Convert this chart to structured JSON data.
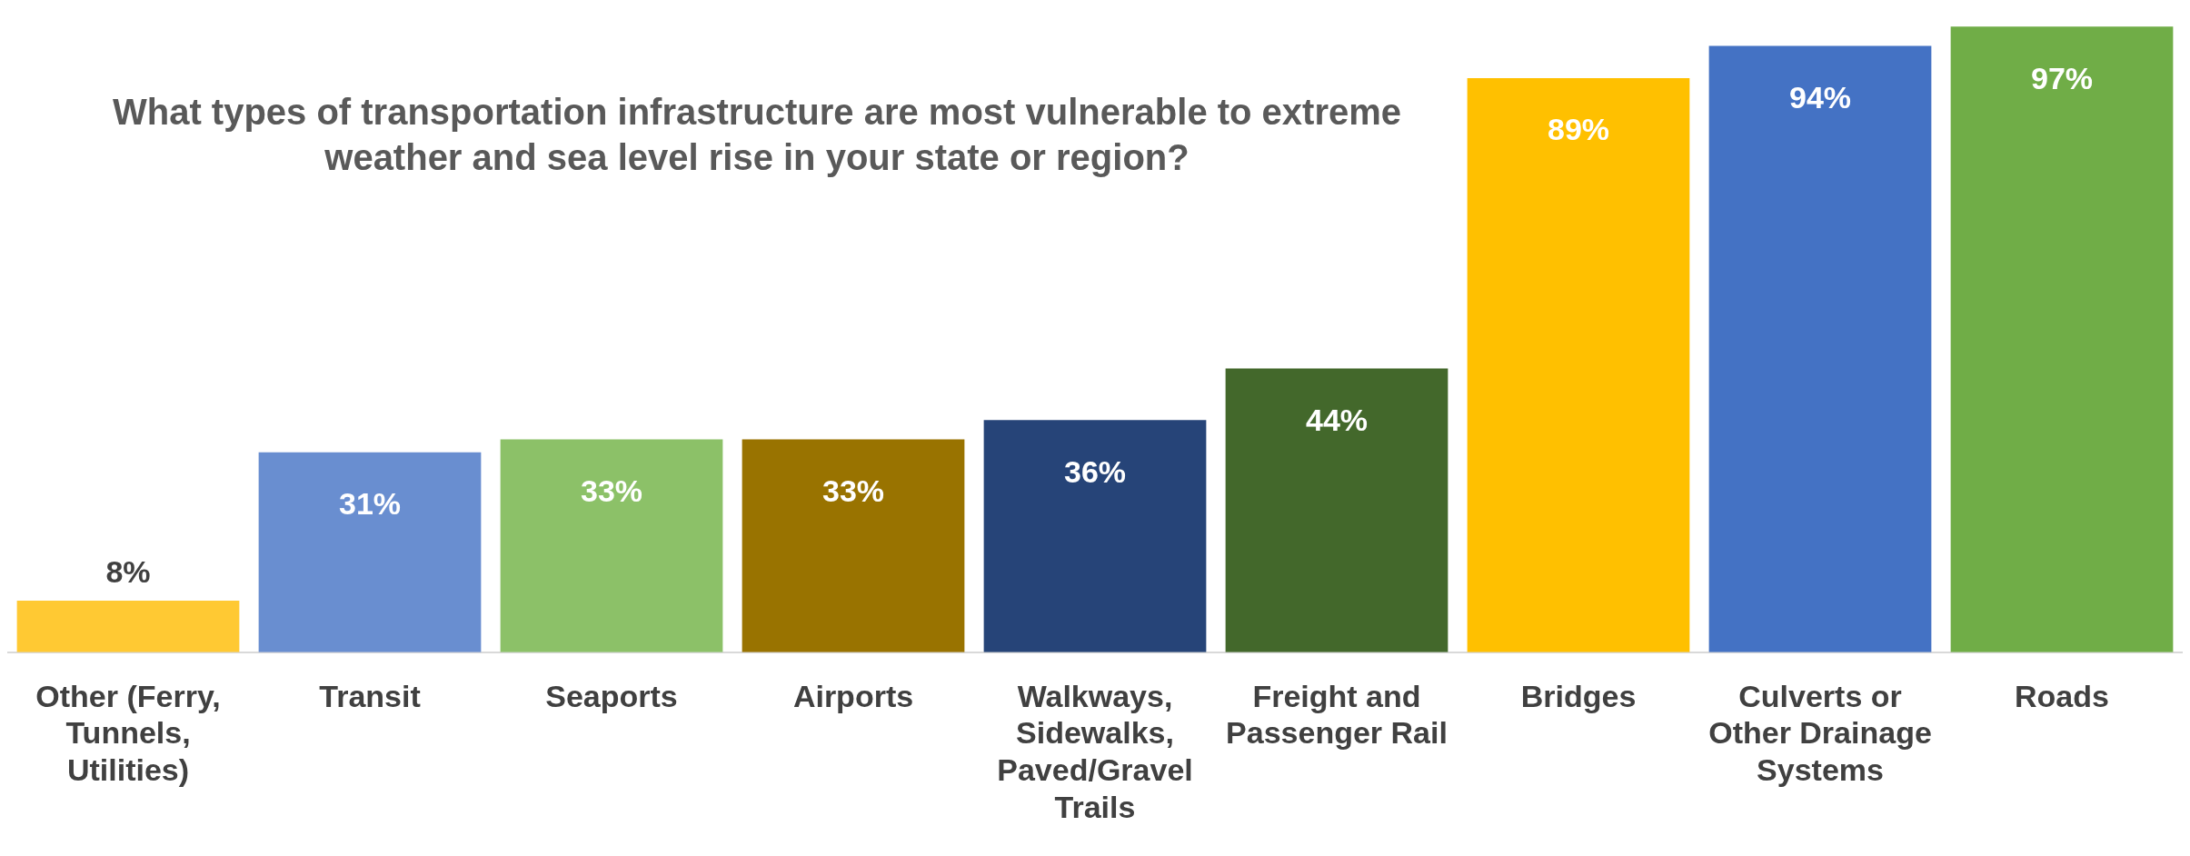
{
  "chart_data": {
    "type": "bar",
    "title": "What types of transportation infrastructure are most vulnerable to extreme weather and sea level rise in your state or region?",
    "categories": [
      "Other (Ferry, Tunnels, Utilities)",
      "Transit",
      "Seaports",
      "Airports",
      "Walkways, Sidewalks, Paved/Gravel Trails",
      "Freight and Passenger Rail",
      "Bridges",
      "Culverts or Other Drainage Systems",
      "Roads"
    ],
    "values": [
      8,
      31,
      33,
      33,
      36,
      44,
      89,
      94,
      97
    ],
    "colors": [
      "#ffc933",
      "#698ed0",
      "#8cc168",
      "#997300",
      "#264478",
      "#43682b",
      "#ffc000",
      "#4472c4",
      "#70ad47"
    ],
    "value_labels": [
      "8%",
      "31%",
      "33%",
      "33%",
      "36%",
      "44%",
      "89%",
      "94%",
      "97%"
    ],
    "grid": false,
    "legend": false
  }
}
